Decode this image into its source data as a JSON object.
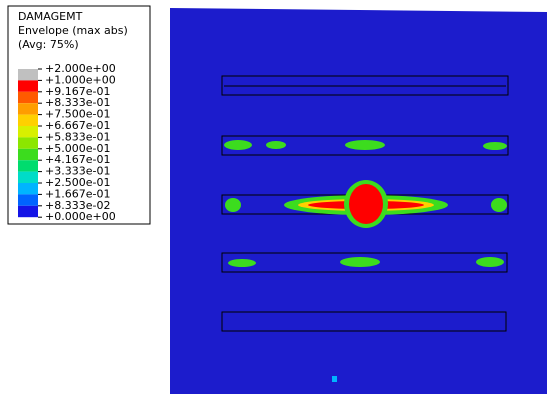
{
  "legend": {
    "title_lines": [
      "DAMAGEMT",
      "Envelope (max abs)",
      "(Avg: 75%)"
    ],
    "labels": [
      "+2.000e+00",
      "+1.000e+00",
      "+9.167e-01",
      "+8.333e-01",
      "+7.500e-01",
      "+6.667e-01",
      "+5.833e-01",
      "+5.000e-01",
      "+4.167e-01",
      "+3.333e-01",
      "+2.500e-01",
      "+1.667e-01",
      "+8.333e-02",
      "+0.000e+00"
    ],
    "colors": [
      "#c0c0c0",
      "#ff0000",
      "#ff5a00",
      "#ff9d00",
      "#ffd000",
      "#d8f000",
      "#8ce600",
      "#3cdc1e",
      "#00dc6e",
      "#00dcc8",
      "#00b4ff",
      "#0064ff",
      "#1414e6"
    ]
  }
}
